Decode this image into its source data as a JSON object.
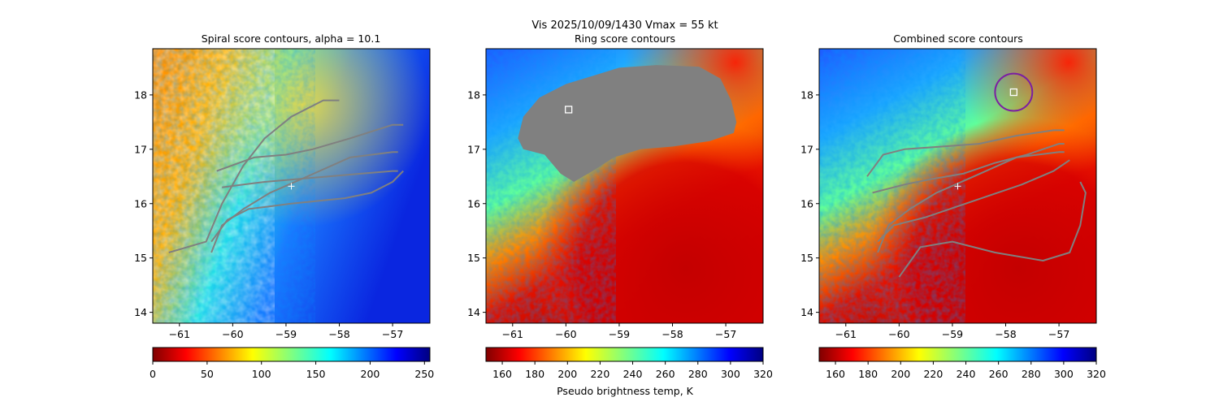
{
  "suptitle": "Vis  2025/10/09/1430    Vmax = 55 kt",
  "chart_data": [
    {
      "type": "heatmap",
      "title": "Spiral score contours, alpha = 10.1",
      "xlim": [
        -61.5,
        -56.3
      ],
      "ylim": [
        13.8,
        18.85
      ],
      "xticks": [
        -61,
        -60,
        -59,
        -58,
        -57
      ],
      "yticks": [
        14,
        15,
        16,
        17,
        18
      ],
      "colormap": "jet_r",
      "colorbar": {
        "range": [
          0,
          255
        ],
        "ticks": [
          0,
          50,
          100,
          150,
          200,
          250
        ],
        "label": ""
      },
      "center_marker": {
        "x": -58.9,
        "y": 16.32,
        "symbol": "+"
      },
      "contours": [
        [
          [
            -61.2,
            15.1
          ],
          [
            -60.5,
            15.3
          ],
          [
            -60.2,
            16.0
          ],
          [
            -59.8,
            16.7
          ],
          [
            -59.4,
            17.2
          ],
          [
            -58.9,
            17.6
          ],
          [
            -58.3,
            17.9
          ],
          [
            -58.0,
            17.9
          ]
        ],
        [
          [
            -60.3,
            16.6
          ],
          [
            -59.6,
            16.85
          ],
          [
            -59.0,
            16.9
          ],
          [
            -58.5,
            17.0
          ],
          [
            -57.8,
            17.2
          ],
          [
            -57.0,
            17.45
          ],
          [
            -56.8,
            17.45
          ]
        ],
        [
          [
            -60.4,
            15.1
          ],
          [
            -60.2,
            15.6
          ],
          [
            -59.8,
            15.9
          ],
          [
            -59.3,
            16.2
          ],
          [
            -58.6,
            16.5
          ],
          [
            -57.8,
            16.85
          ],
          [
            -57.0,
            16.95
          ],
          [
            -56.9,
            16.95
          ]
        ],
        [
          [
            -60.2,
            16.3
          ],
          [
            -59.8,
            16.35
          ],
          [
            -59.4,
            16.4
          ],
          [
            -58.8,
            16.45
          ],
          [
            -58.2,
            16.5
          ],
          [
            -57.6,
            16.55
          ],
          [
            -57.0,
            16.6
          ],
          [
            -56.9,
            16.6
          ]
        ],
        [
          [
            -60.4,
            15.3
          ],
          [
            -60.1,
            15.7
          ],
          [
            -59.7,
            15.9
          ],
          [
            -59.3,
            15.95
          ],
          [
            -58.9,
            16.0
          ],
          [
            -58.4,
            16.05
          ],
          [
            -57.9,
            16.1
          ],
          [
            -57.4,
            16.2
          ],
          [
            -57.0,
            16.4
          ],
          [
            -56.8,
            16.6
          ]
        ]
      ]
    },
    {
      "type": "heatmap",
      "title": "Ring score contours",
      "xlim": [
        -61.5,
        -56.3
      ],
      "ylim": [
        13.8,
        18.85
      ],
      "xticks": [
        -61,
        -60,
        -59,
        -58,
        -57
      ],
      "yticks": [
        14,
        15,
        16,
        17,
        18
      ],
      "colormap": "jet_r",
      "colorbar": {
        "range": [
          150,
          320
        ],
        "ticks": [
          160,
          180,
          200,
          220,
          240,
          260,
          280,
          300,
          320
        ],
        "label": "Pseudo brightness temp, K"
      },
      "square_marker": {
        "x": -59.95,
        "y": 17.73,
        "symbol": "square"
      },
      "mask_color": "#808080"
    },
    {
      "type": "heatmap",
      "title": "Combined score contours",
      "xlim": [
        -61.5,
        -56.3
      ],
      "ylim": [
        13.8,
        18.85
      ],
      "xticks": [
        -61,
        -60,
        -59,
        -58,
        -57
      ],
      "yticks": [
        14,
        15,
        16,
        17,
        18
      ],
      "colormap": "jet_r",
      "colorbar": {
        "range": [
          150,
          320
        ],
        "ticks": [
          160,
          180,
          200,
          220,
          240,
          260,
          280,
          300,
          320
        ],
        "label": ""
      },
      "center_marker": {
        "x": -58.9,
        "y": 16.32,
        "symbol": "+"
      },
      "square_marker": {
        "x": -57.85,
        "y": 18.05,
        "symbol": "square"
      },
      "ring": {
        "x": -57.85,
        "y": 18.05,
        "r": 0.35,
        "color": "#7b1fa2"
      },
      "contours": [
        [
          [
            -60.6,
            16.5
          ],
          [
            -60.3,
            16.9
          ],
          [
            -59.9,
            17.0
          ],
          [
            -59.2,
            17.05
          ],
          [
            -58.5,
            17.1
          ],
          [
            -57.8,
            17.25
          ],
          [
            -57.1,
            17.35
          ],
          [
            -56.9,
            17.35
          ]
        ],
        [
          [
            -60.4,
            15.1
          ],
          [
            -60.2,
            15.6
          ],
          [
            -59.8,
            15.9
          ],
          [
            -59.3,
            16.2
          ],
          [
            -58.6,
            16.5
          ],
          [
            -57.8,
            16.85
          ],
          [
            -57.0,
            16.95
          ],
          [
            -56.9,
            16.95
          ]
        ],
        [
          [
            -60.5,
            16.2
          ],
          [
            -59.9,
            16.35
          ],
          [
            -59.4,
            16.45
          ],
          [
            -58.8,
            16.55
          ],
          [
            -58.2,
            16.75
          ],
          [
            -57.6,
            16.9
          ],
          [
            -57.0,
            17.1
          ],
          [
            -56.9,
            17.1
          ]
        ],
        [
          [
            -60.4,
            15.3
          ],
          [
            -60.1,
            15.6
          ],
          [
            -59.5,
            15.75
          ],
          [
            -58.9,
            15.95
          ],
          [
            -58.3,
            16.15
          ],
          [
            -57.7,
            16.35
          ],
          [
            -57.1,
            16.6
          ],
          [
            -56.8,
            16.8
          ]
        ],
        [
          [
            -60.0,
            14.65
          ],
          [
            -59.6,
            15.2
          ],
          [
            -59.0,
            15.3
          ],
          [
            -58.2,
            15.1
          ],
          [
            -57.3,
            14.95
          ],
          [
            -56.8,
            15.1
          ],
          [
            -56.6,
            15.6
          ],
          [
            -56.5,
            16.2
          ],
          [
            -56.6,
            16.4
          ]
        ]
      ]
    }
  ]
}
